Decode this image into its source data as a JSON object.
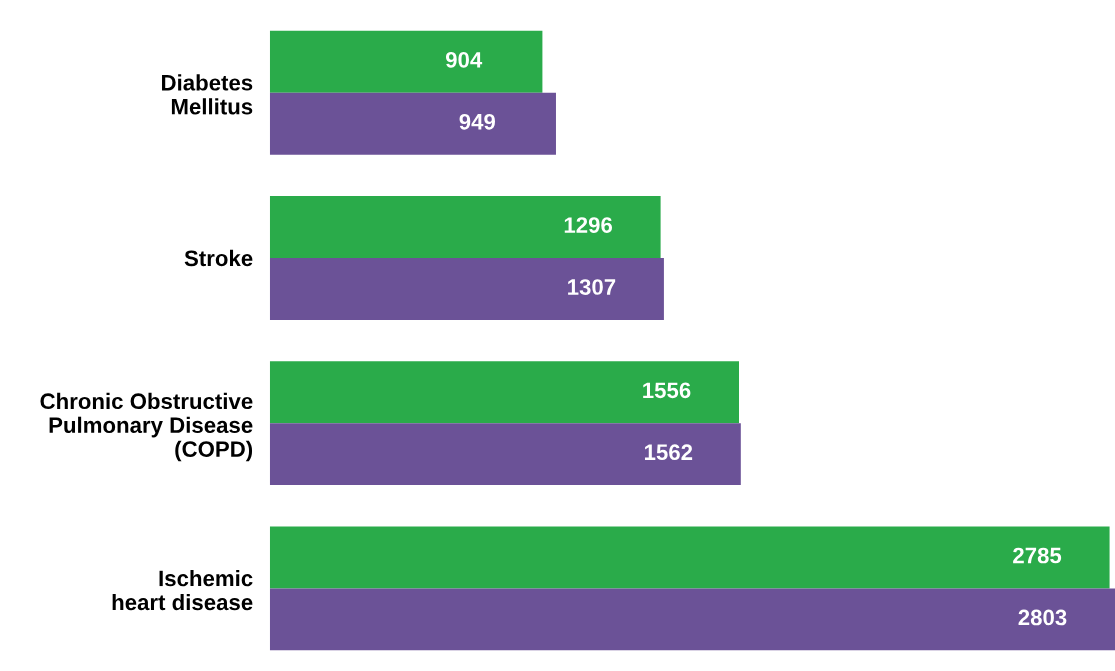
{
  "chart_data": {
    "type": "bar",
    "orientation": "horizontal",
    "data_labels": true,
    "categories": [
      "Diabetes\nMellitus",
      "Stroke",
      "Chronic Obstructive\nPulmonary Disease\n(COPD)",
      "Ischemic\nheart disease"
    ],
    "series": [
      {
        "color": "#2aab4a",
        "values": [
          904,
          1296,
          1556,
          2785
        ]
      },
      {
        "color": "#6b5297",
        "values": [
          949,
          1307,
          1562,
          2803
        ]
      }
    ]
  }
}
